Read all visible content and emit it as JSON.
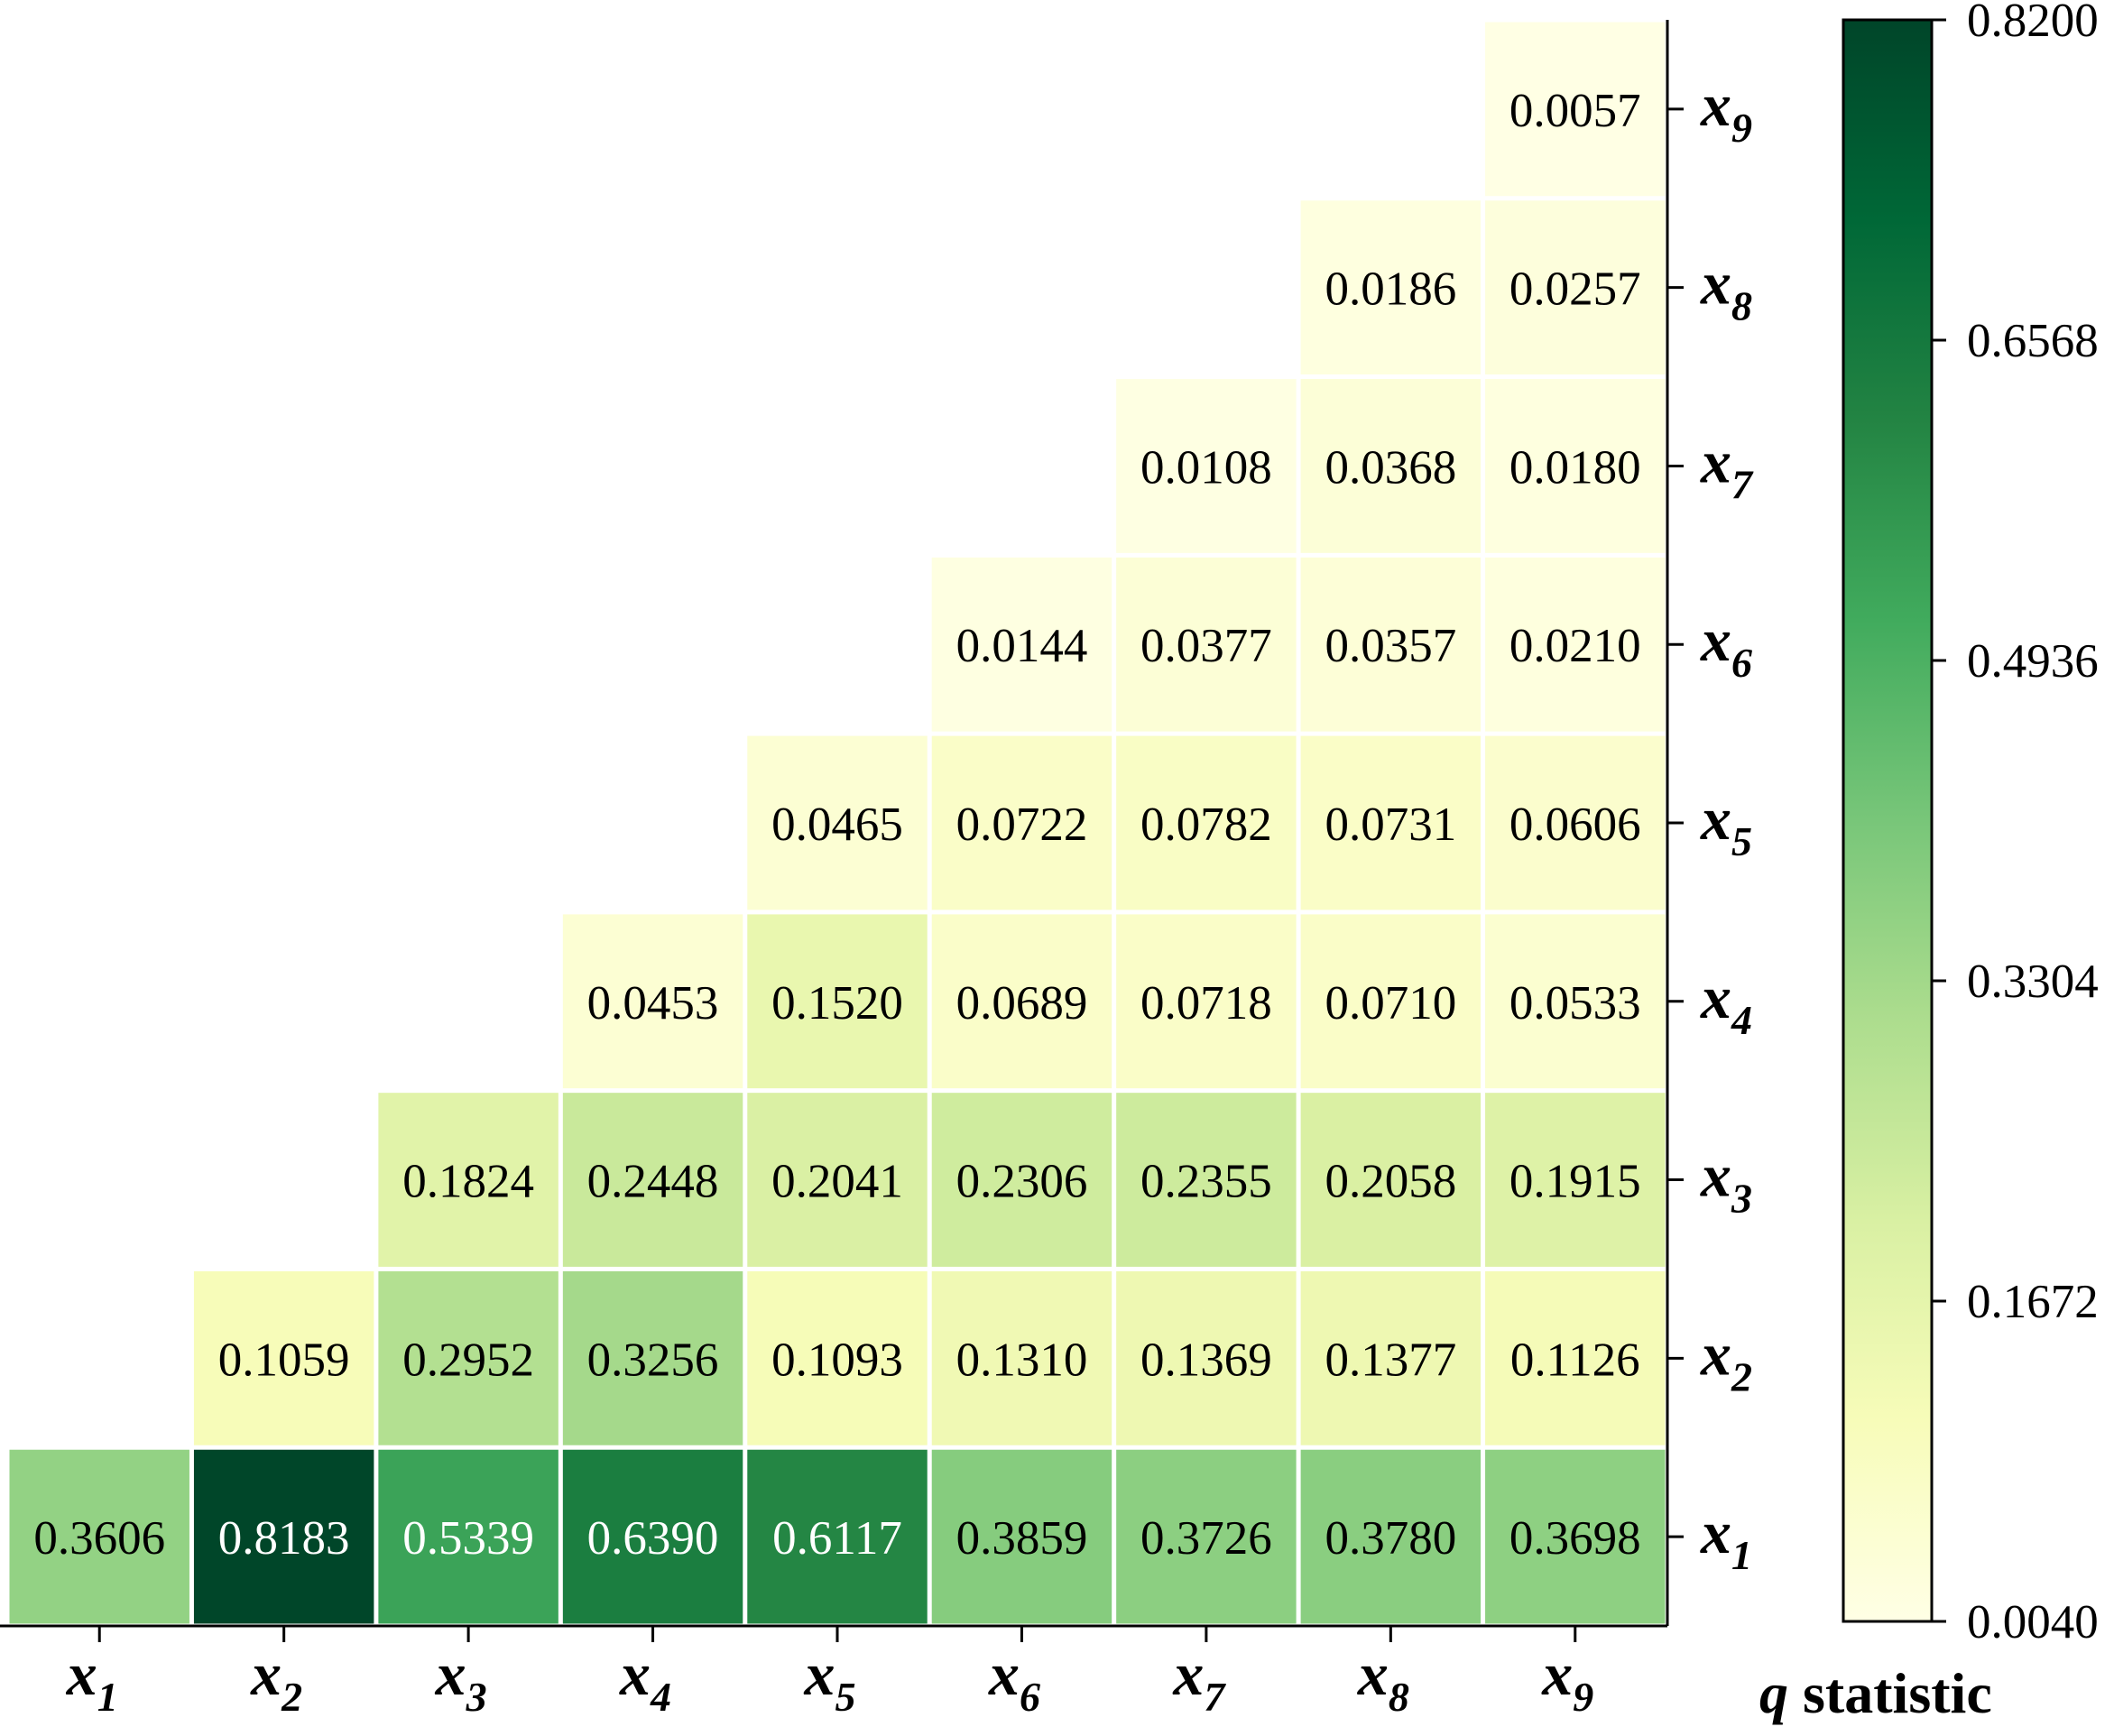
{
  "chart_data": {
    "type": "heatmap",
    "x_categories": [
      "x1",
      "x2",
      "x3",
      "x4",
      "x5",
      "x6",
      "x7",
      "x8",
      "x9"
    ],
    "y_categories": [
      "x1",
      "x2",
      "x3",
      "x4",
      "x5",
      "x6",
      "x7",
      "x8",
      "x9"
    ],
    "x_labels": [
      {
        "base": "x",
        "sub": "1"
      },
      {
        "base": "x",
        "sub": "2"
      },
      {
        "base": "x",
        "sub": "3"
      },
      {
        "base": "x",
        "sub": "4"
      },
      {
        "base": "x",
        "sub": "5"
      },
      {
        "base": "x",
        "sub": "6"
      },
      {
        "base": "x",
        "sub": "7"
      },
      {
        "base": "x",
        "sub": "8"
      },
      {
        "base": "x",
        "sub": "9"
      }
    ],
    "y_labels": [
      {
        "base": "x",
        "sub": "1"
      },
      {
        "base": "x",
        "sub": "2"
      },
      {
        "base": "x",
        "sub": "3"
      },
      {
        "base": "x",
        "sub": "4"
      },
      {
        "base": "x",
        "sub": "5"
      },
      {
        "base": "x",
        "sub": "6"
      },
      {
        "base": "x",
        "sub": "7"
      },
      {
        "base": "x",
        "sub": "8"
      },
      {
        "base": "x",
        "sub": "9"
      }
    ],
    "rows": [
      [
        "0.3606",
        "0.8183",
        "0.5339",
        "0.6390",
        "0.6117",
        "0.3859",
        "0.3726",
        "0.3780",
        "0.3698"
      ],
      [
        null,
        "0.1059",
        "0.2952",
        "0.3256",
        "0.1093",
        "0.1310",
        "0.1369",
        "0.1377",
        "0.1126"
      ],
      [
        null,
        null,
        "0.1824",
        "0.2448",
        "0.2041",
        "0.2306",
        "0.2355",
        "0.2058",
        "0.1915"
      ],
      [
        null,
        null,
        null,
        "0.0453",
        "0.1520",
        "0.0689",
        "0.0718",
        "0.0710",
        "0.0533"
      ],
      [
        null,
        null,
        null,
        null,
        "0.0465",
        "0.0722",
        "0.0782",
        "0.0731",
        "0.0606"
      ],
      [
        null,
        null,
        null,
        null,
        null,
        "0.0144",
        "0.0377",
        "0.0357",
        "0.0210"
      ],
      [
        null,
        null,
        null,
        null,
        null,
        null,
        "0.0108",
        "0.0368",
        "0.0180"
      ],
      [
        null,
        null,
        null,
        null,
        null,
        null,
        null,
        "0.0186",
        "0.0257"
      ],
      [
        null,
        null,
        null,
        null,
        null,
        null,
        null,
        null,
        "0.0057"
      ]
    ],
    "colorbar": {
      "min": 0.004,
      "max": 0.82,
      "ticks": [
        "0.0040",
        "0.1672",
        "0.3304",
        "0.4936",
        "0.6568",
        "0.8200"
      ],
      "title_italic": "q",
      "title_rest": " statistic",
      "colors": [
        "#ffffe5",
        "#f7fcb9",
        "#d9f0a3",
        "#addd8e",
        "#78c679",
        "#41ab5d",
        "#238443",
        "#006837",
        "#004529"
      ]
    },
    "grid": false,
    "legend": "right"
  }
}
